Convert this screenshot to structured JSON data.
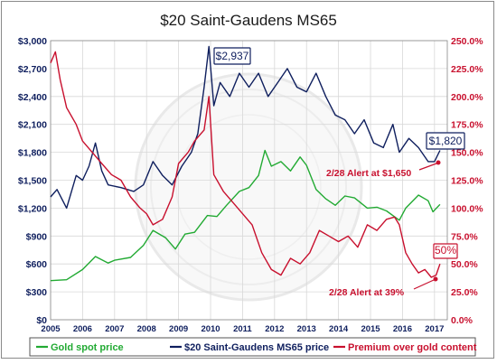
{
  "chart_data": {
    "type": "line",
    "title": "$20 Saint-Gaudens MS65",
    "x_ticks": [
      "2005",
      "2006",
      "2007",
      "2008",
      "2009",
      "2010",
      "2011",
      "2012",
      "2013",
      "2014",
      "2015",
      "2016",
      "2017"
    ],
    "xlim": [
      2005,
      2017.4
    ],
    "y_left_ticks": [
      "$0",
      "$300",
      "$600",
      "$900",
      "$1,200",
      "$1,500",
      "$1,800",
      "$2,100",
      "$2,400",
      "$2,700",
      "$3,000"
    ],
    "ylim_left": [
      0,
      3000
    ],
    "y_right_ticks": [
      "0.0%",
      "25.0%",
      "50.0%",
      "75.0%",
      "100.0%",
      "125.0%",
      "150.0%",
      "175.0%",
      "200.0%",
      "225.0%",
      "250.0%"
    ],
    "ylim_right": [
      0,
      250
    ],
    "grid": true,
    "legend_position": "bottom",
    "series": [
      {
        "name": "Gold spot price",
        "axis": "left",
        "color": "#22aa33",
        "points": [
          [
            2005,
            420
          ],
          [
            2005.5,
            430
          ],
          [
            2006,
            540
          ],
          [
            2006.4,
            680
          ],
          [
            2006.8,
            610
          ],
          [
            2007,
            640
          ],
          [
            2007.5,
            670
          ],
          [
            2007.9,
            800
          ],
          [
            2008.2,
            960
          ],
          [
            2008.6,
            880
          ],
          [
            2008.9,
            760
          ],
          [
            2009.2,
            920
          ],
          [
            2009.5,
            940
          ],
          [
            2009.9,
            1120
          ],
          [
            2010.2,
            1110
          ],
          [
            2010.5,
            1230
          ],
          [
            2010.9,
            1380
          ],
          [
            2011.2,
            1420
          ],
          [
            2011.5,
            1550
          ],
          [
            2011.7,
            1820
          ],
          [
            2011.9,
            1650
          ],
          [
            2012.2,
            1700
          ],
          [
            2012.5,
            1600
          ],
          [
            2012.8,
            1750
          ],
          [
            2013,
            1660
          ],
          [
            2013.3,
            1400
          ],
          [
            2013.6,
            1300
          ],
          [
            2013.9,
            1230
          ],
          [
            2014.2,
            1330
          ],
          [
            2014.5,
            1310
          ],
          [
            2014.9,
            1200
          ],
          [
            2015.2,
            1210
          ],
          [
            2015.5,
            1170
          ],
          [
            2015.9,
            1070
          ],
          [
            2016.1,
            1200
          ],
          [
            2016.5,
            1340
          ],
          [
            2016.8,
            1280
          ],
          [
            2016.95,
            1160
          ],
          [
            2017.17,
            1240
          ]
        ]
      },
      {
        "name": "$20 Saint-Gaudens MS65 price",
        "axis": "left",
        "color": "#0f1f5e",
        "points": [
          [
            2005,
            1320
          ],
          [
            2005.2,
            1400
          ],
          [
            2005.5,
            1200
          ],
          [
            2005.8,
            1550
          ],
          [
            2006,
            1500
          ],
          [
            2006.2,
            1650
          ],
          [
            2006.4,
            1900
          ],
          [
            2006.6,
            1600
          ],
          [
            2006.8,
            1450
          ],
          [
            2007.2,
            1420
          ],
          [
            2007.6,
            1380
          ],
          [
            2007.9,
            1450
          ],
          [
            2008.2,
            1700
          ],
          [
            2008.5,
            1550
          ],
          [
            2008.8,
            1450
          ],
          [
            2009.1,
            1650
          ],
          [
            2009.4,
            1800
          ],
          [
            2009.6,
            2000
          ],
          [
            2009.8,
            2500
          ],
          [
            2009.95,
            2937
          ],
          [
            2010.1,
            2300
          ],
          [
            2010.3,
            2550
          ],
          [
            2010.6,
            2400
          ],
          [
            2010.9,
            2650
          ],
          [
            2011.2,
            2500
          ],
          [
            2011.5,
            2650
          ],
          [
            2011.8,
            2400
          ],
          [
            2012.1,
            2550
          ],
          [
            2012.4,
            2700
          ],
          [
            2012.7,
            2500
          ],
          [
            2013,
            2450
          ],
          [
            2013.3,
            2650
          ],
          [
            2013.6,
            2400
          ],
          [
            2013.9,
            2200
          ],
          [
            2014.2,
            2150
          ],
          [
            2014.5,
            2000
          ],
          [
            2014.8,
            2150
          ],
          [
            2015.1,
            1900
          ],
          [
            2015.4,
            1850
          ],
          [
            2015.7,
            2100
          ],
          [
            2015.9,
            1800
          ],
          [
            2016.2,
            1950
          ],
          [
            2016.5,
            1850
          ],
          [
            2016.8,
            1700
          ],
          [
            2017,
            1700
          ],
          [
            2017.17,
            1820
          ]
        ]
      },
      {
        "name": "Premium over gold content",
        "axis": "right",
        "color": "#c8102e",
        "points": [
          [
            2005,
            230
          ],
          [
            2005.15,
            240
          ],
          [
            2005.3,
            215
          ],
          [
            2005.5,
            190
          ],
          [
            2005.8,
            175
          ],
          [
            2006,
            160
          ],
          [
            2006.3,
            150
          ],
          [
            2006.6,
            140
          ],
          [
            2006.9,
            130
          ],
          [
            2007.2,
            125
          ],
          [
            2007.5,
            110
          ],
          [
            2007.8,
            100
          ],
          [
            2008,
            95
          ],
          [
            2008.2,
            85
          ],
          [
            2008.5,
            90
          ],
          [
            2008.8,
            110
          ],
          [
            2009,
            140
          ],
          [
            2009.3,
            150
          ],
          [
            2009.5,
            160
          ],
          [
            2009.8,
            170
          ],
          [
            2009.95,
            200
          ],
          [
            2010.1,
            130
          ],
          [
            2010.4,
            115
          ],
          [
            2010.7,
            105
          ],
          [
            2011,
            95
          ],
          [
            2011.3,
            85
          ],
          [
            2011.6,
            60
          ],
          [
            2011.9,
            45
          ],
          [
            2012.2,
            40
          ],
          [
            2012.5,
            55
          ],
          [
            2012.8,
            50
          ],
          [
            2013.1,
            60
          ],
          [
            2013.4,
            80
          ],
          [
            2013.7,
            75
          ],
          [
            2014,
            70
          ],
          [
            2014.3,
            75
          ],
          [
            2014.6,
            65
          ],
          [
            2014.9,
            85
          ],
          [
            2015.2,
            80
          ],
          [
            2015.5,
            90
          ],
          [
            2015.75,
            92
          ],
          [
            2015.9,
            85
          ],
          [
            2016.1,
            60
          ],
          [
            2016.3,
            50
          ],
          [
            2016.5,
            42
          ],
          [
            2016.7,
            45
          ],
          [
            2016.9,
            38
          ],
          [
            2017.05,
            40
          ],
          [
            2017.17,
            50
          ]
        ]
      }
    ],
    "annotations": {
      "peak_label": "$2,937",
      "latest_price_label": "$1,820",
      "latest_premium_label": "50%",
      "price_alert": "2/28 Alert at $1,650",
      "premium_alert": "2/28 Alert at 39%"
    }
  },
  "colors": {
    "gold": "#22aa33",
    "coin": "#0f1f5e",
    "premium": "#c8102e",
    "grid": "#d8d8d8",
    "watermark": "#cfcfcf"
  }
}
